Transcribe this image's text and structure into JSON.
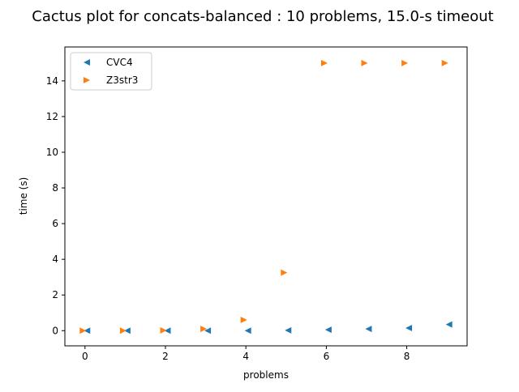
{
  "chart_data": {
    "type": "scatter",
    "title": "Cactus plot for concats-balanced : 10 problems, 15.0-s timeout",
    "xlabel": "problems",
    "ylabel": "time (s)",
    "xlim": [
      -0.5,
      9.5
    ],
    "ylim": [
      -0.85,
      15.9
    ],
    "xticks": [
      0,
      2,
      4,
      6,
      8
    ],
    "yticks": [
      0,
      2,
      4,
      6,
      8,
      10,
      12,
      14
    ],
    "grid": false,
    "legend_position": "top-left",
    "series": [
      {
        "name": "CVC4",
        "marker": "triangle-left",
        "color": "#1f77b4",
        "x": [
          0.05,
          1.05,
          2.05,
          3.05,
          4.05,
          5.05,
          6.05,
          7.05,
          8.05,
          9.05
        ],
        "values": [
          0.0,
          0.0,
          0.0,
          0.0,
          0.0,
          0.02,
          0.05,
          0.1,
          0.15,
          0.35
        ]
      },
      {
        "name": "Z3str3",
        "marker": "triangle-right",
        "color": "#ff7f0e",
        "x": [
          -0.05,
          0.95,
          1.95,
          2.95,
          3.95,
          4.95,
          5.95,
          6.95,
          7.95,
          8.95
        ],
        "values": [
          0.0,
          0.0,
          0.02,
          0.1,
          0.6,
          3.25,
          15.0,
          15.0,
          15.0,
          15.0
        ]
      }
    ]
  }
}
